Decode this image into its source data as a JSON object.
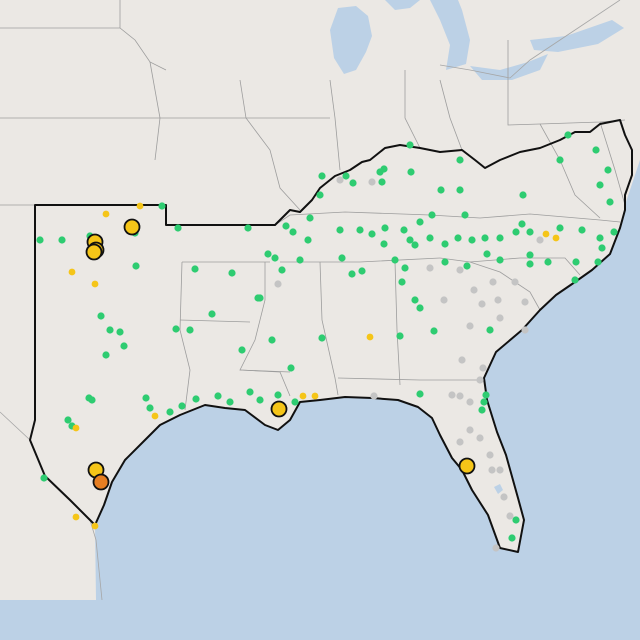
{
  "map": {
    "colors": {
      "land": "#ebe8e4",
      "land_dark": "#e3dfda",
      "water": "#bcd1e6",
      "region_outline": "#111111",
      "state_border": "#9d9d9d",
      "status_ok": "#2ecc71",
      "status_warning": "#f5c518",
      "status_alert": "#e67e22",
      "status_offline": "#c4c4c4"
    },
    "marker_counts": {
      "ok": 170,
      "warning": 20,
      "alert": 1,
      "offline": 30
    },
    "legend_visible": false,
    "labels_visible": false
  }
}
